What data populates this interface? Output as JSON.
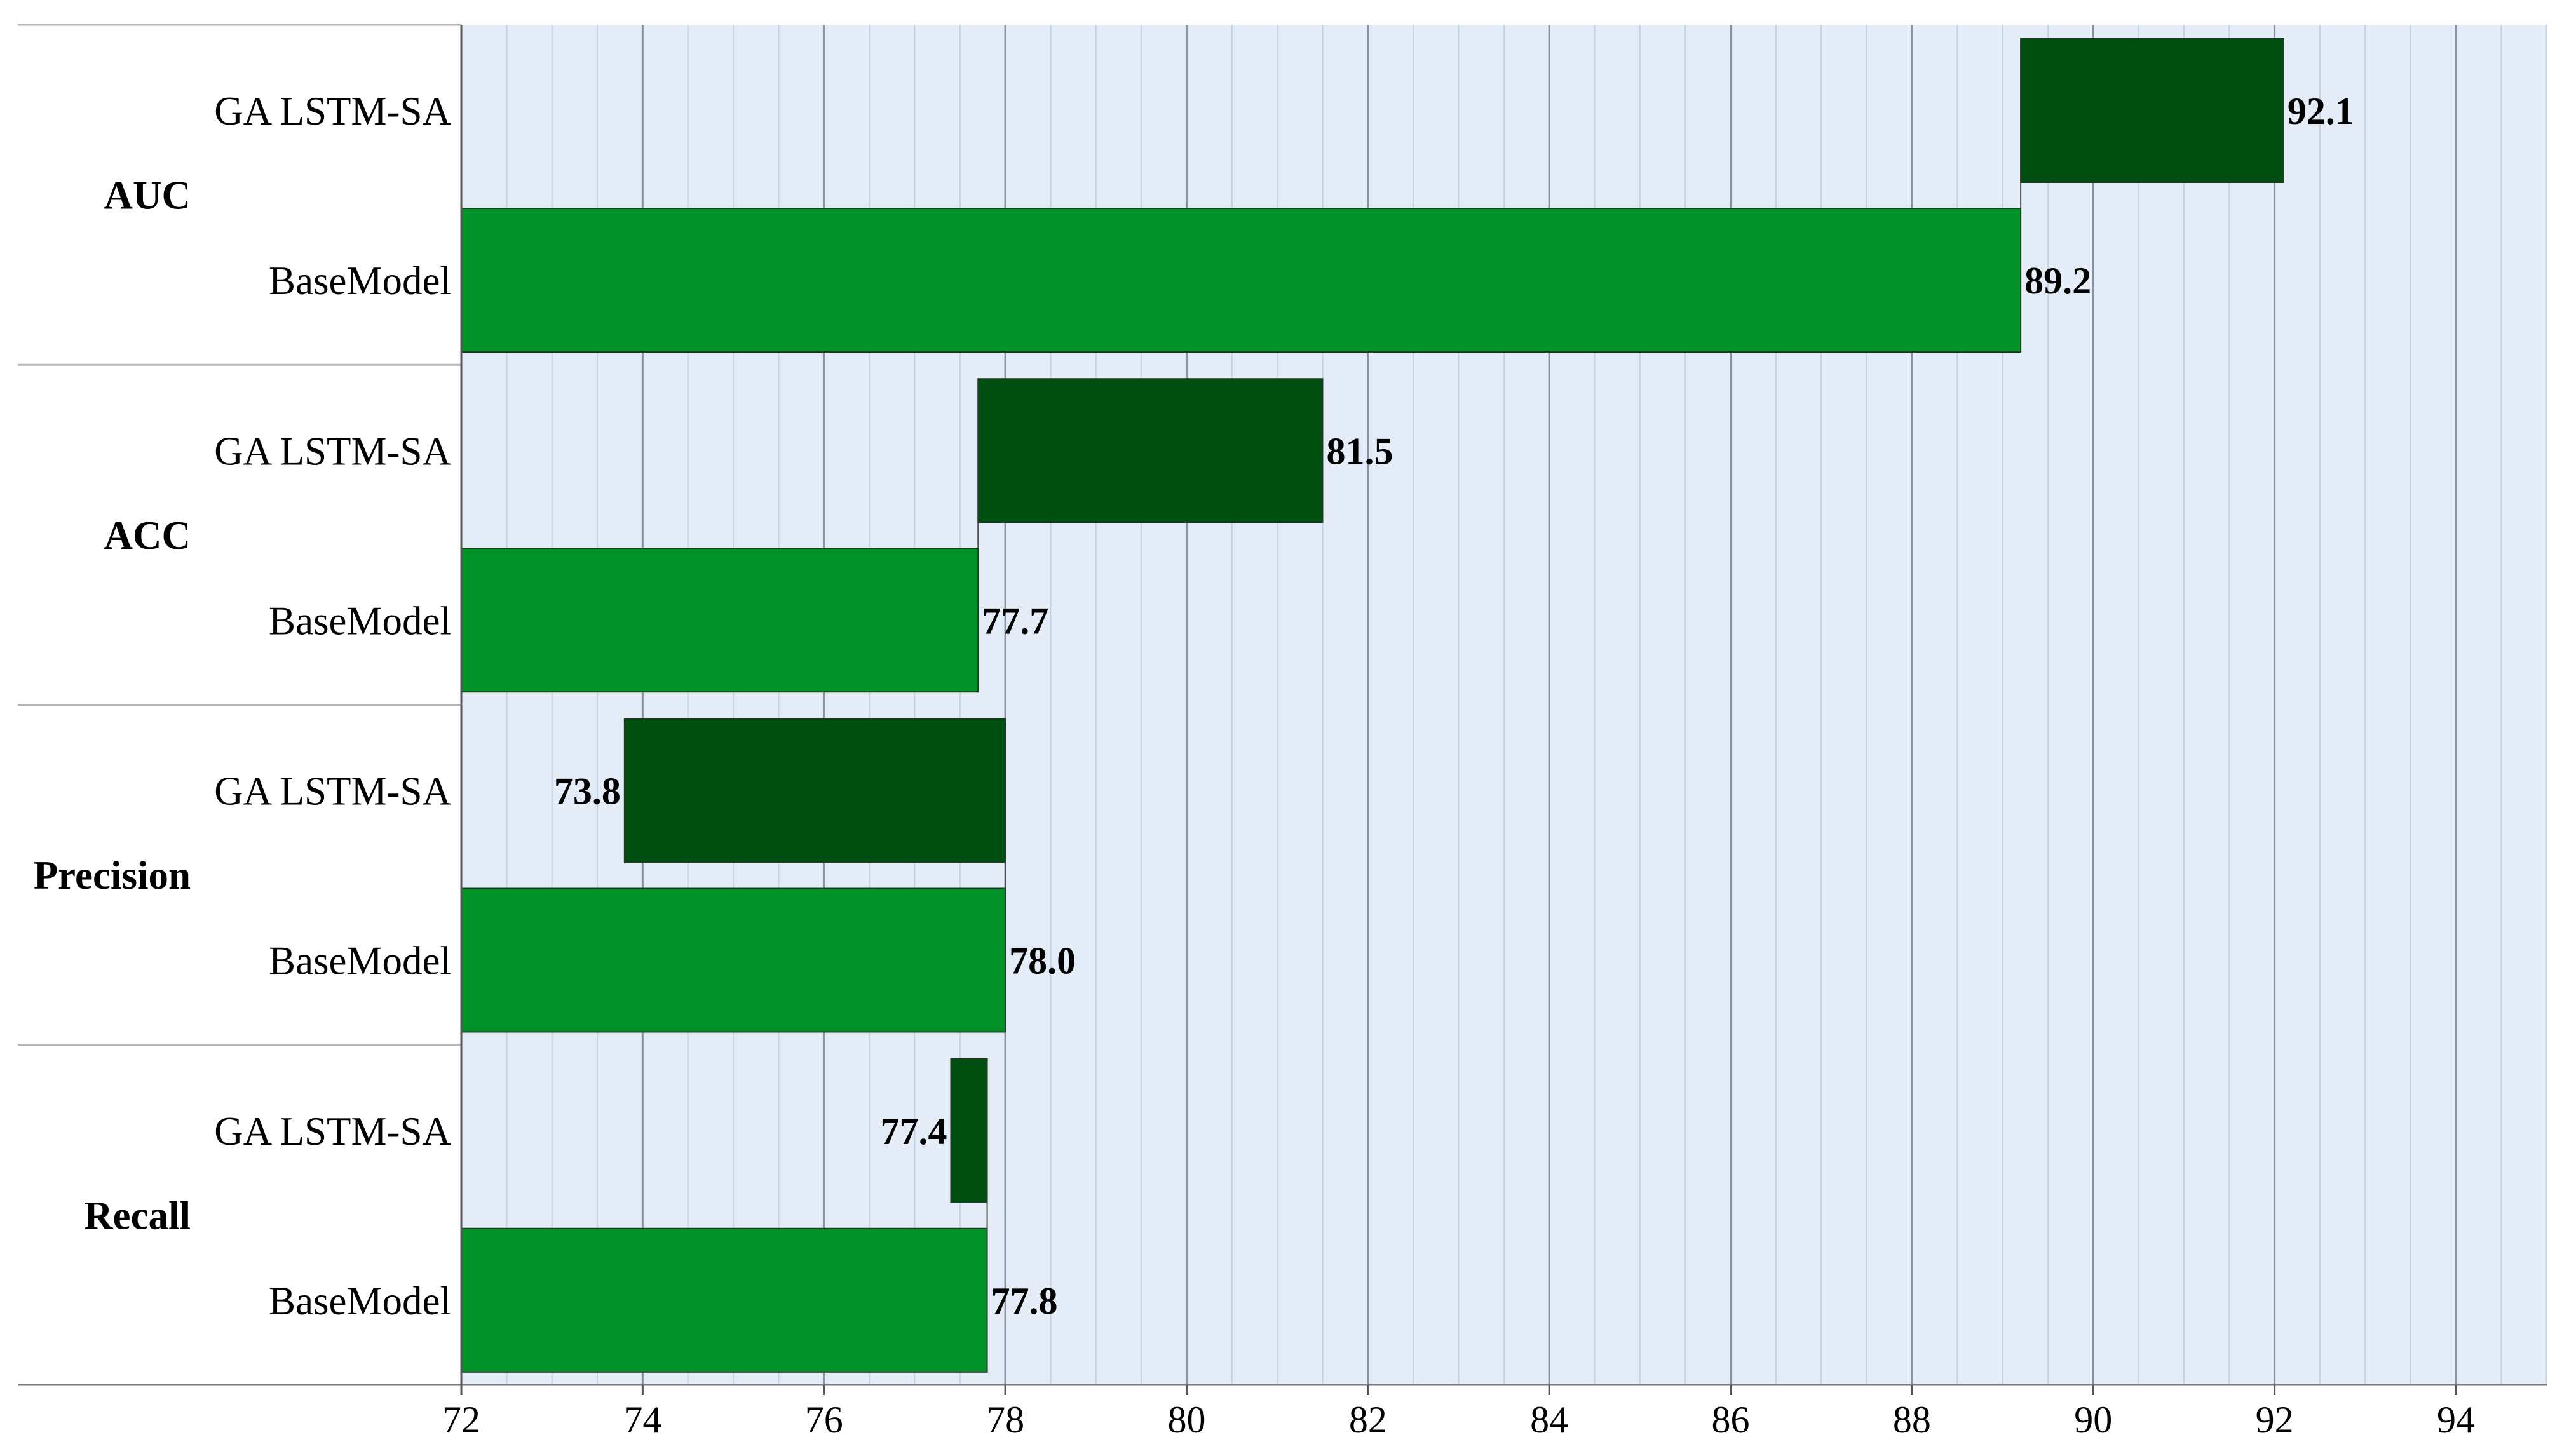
{
  "chart_data": {
    "type": "bar",
    "orientation": "horizontal",
    "xlim": [
      72,
      95
    ],
    "major_ticks": [
      72,
      74,
      76,
      78,
      80,
      82,
      84,
      86,
      88,
      90,
      92,
      94
    ],
    "minor_tick_step": 0.5,
    "grid": true,
    "groups": [
      {
        "category": "AUC",
        "bars": [
          {
            "label": "GA LSTM-SA",
            "base": 89.2,
            "value": 92.1,
            "value_label": "92.1",
            "label_side": "right"
          },
          {
            "label": "BaseModel",
            "base": 72,
            "value": 89.2,
            "value_label": "89.2",
            "label_side": "right"
          }
        ]
      },
      {
        "category": "ACC",
        "bars": [
          {
            "label": "GA LSTM-SA",
            "base": 77.7,
            "value": 81.5,
            "value_label": "81.5",
            "label_side": "right"
          },
          {
            "label": "BaseModel",
            "base": 72,
            "value": 77.7,
            "value_label": "77.7",
            "label_side": "right"
          }
        ]
      },
      {
        "category": "Precision",
        "bars": [
          {
            "label": "GA LSTM-SA",
            "base": 78.0,
            "value": 73.8,
            "value_label": "73.8",
            "label_side": "left"
          },
          {
            "label": "BaseModel",
            "base": 72,
            "value": 78.0,
            "value_label": "78.0",
            "label_side": "right"
          }
        ]
      },
      {
        "category": "Recall",
        "bars": [
          {
            "label": "GA LSTM-SA",
            "base": 77.8,
            "value": 77.4,
            "value_label": "77.4",
            "label_side": "left"
          },
          {
            "label": "BaseModel",
            "base": 72,
            "value": 77.8,
            "value_label": "77.8",
            "label_side": "right"
          }
        ]
      }
    ],
    "colors": {
      "GA LSTM-SA": "#004f12",
      "BaseModel": "#009128",
      "plot_background": "#e3ecf7",
      "major_grid": "#8a93a0",
      "minor_grid": "#c6d2e2",
      "separator": "#b5b5b5"
    }
  }
}
